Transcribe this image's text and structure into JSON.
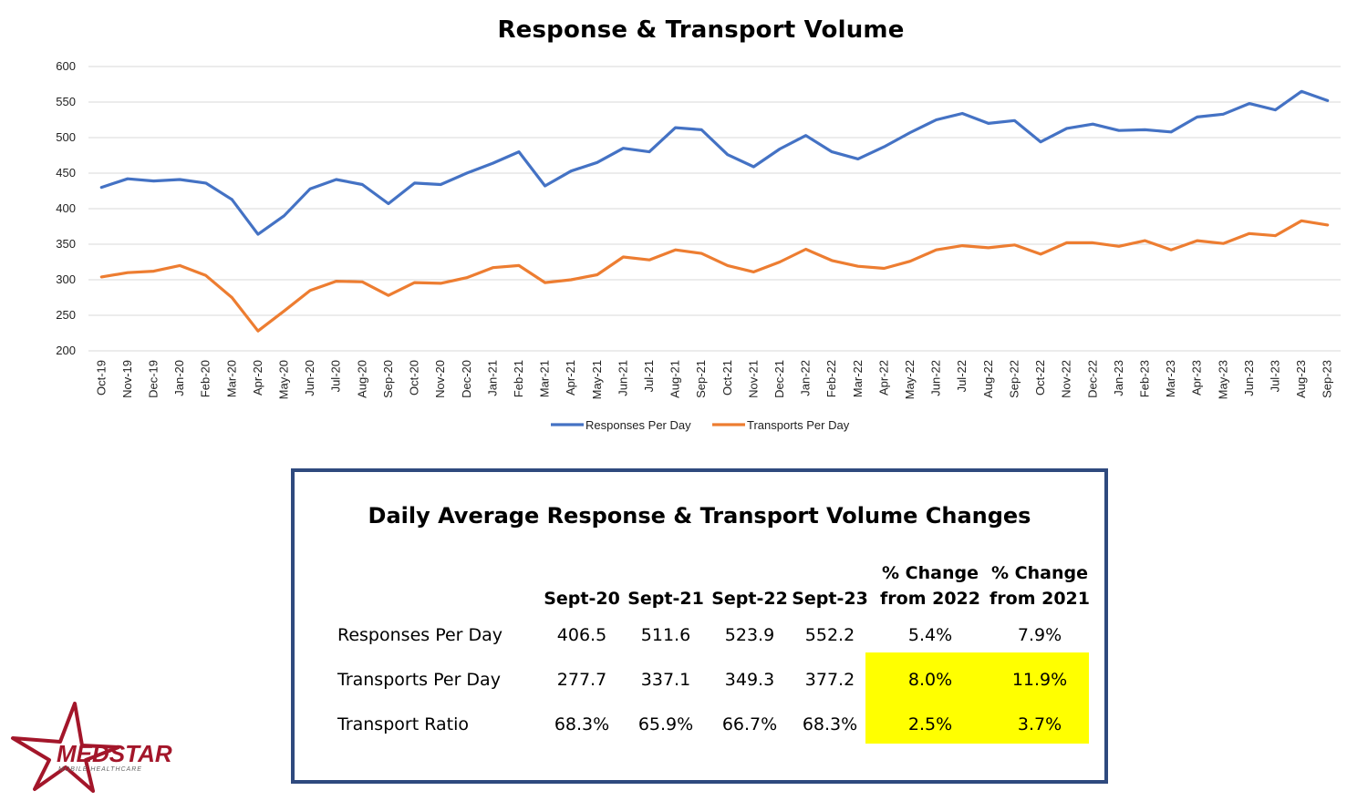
{
  "chart_data": {
    "type": "line",
    "title": "Response & Transport Volume",
    "ylim": [
      200,
      600
    ],
    "yticks": [
      200,
      250,
      300,
      350,
      400,
      450,
      500,
      550,
      600
    ],
    "grid": true,
    "legend_position": "bottom",
    "categories": [
      "Oct-19",
      "Nov-19",
      "Dec-19",
      "Jan-20",
      "Feb-20",
      "Mar-20",
      "Apr-20",
      "May-20",
      "Jun-20",
      "Jul-20",
      "Aug-20",
      "Sep-20",
      "Oct-20",
      "Nov-20",
      "Dec-20",
      "Jan-21",
      "Feb-21",
      "Mar-21",
      "Apr-21",
      "May-21",
      "Jun-21",
      "Jul-21",
      "Aug-21",
      "Sep-21",
      "Oct-21",
      "Nov-21",
      "Dec-21",
      "Jan-22",
      "Feb-22",
      "Mar-22",
      "Apr-22",
      "May-22",
      "Jun-22",
      "Jul-22",
      "Aug-22",
      "Sep-22",
      "Oct-22",
      "Nov-22",
      "Dec-22",
      "Jan-23",
      "Feb-23",
      "Mar-23",
      "Apr-23",
      "May-23",
      "Jun-23",
      "Jul-23",
      "Aug-23",
      "Sep-23"
    ],
    "series": [
      {
        "name": "Responses Per Day",
        "color": "#4472c4",
        "values": [
          430,
          442,
          439,
          441,
          436,
          413,
          364,
          390,
          428,
          441,
          434,
          407,
          436,
          434,
          450,
          464,
          480,
          432,
          453,
          465,
          485,
          480,
          514,
          511,
          476,
          459,
          484,
          503,
          480,
          470,
          487,
          507,
          525,
          534,
          520,
          524,
          494,
          513,
          519,
          510,
          511,
          508,
          529,
          533,
          548,
          539,
          565,
          552
        ]
      },
      {
        "name": "Transports Per Day",
        "color": "#ed7d31",
        "values": [
          304,
          310,
          312,
          320,
          306,
          275,
          228,
          256,
          285,
          298,
          297,
          278,
          296,
          295,
          303,
          317,
          320,
          296,
          300,
          307,
          332,
          328,
          342,
          337,
          320,
          311,
          325,
          343,
          327,
          319,
          316,
          326,
          342,
          348,
          345,
          349,
          336,
          352,
          352,
          347,
          355,
          342,
          355,
          351,
          365,
          362,
          383,
          377
        ]
      }
    ]
  },
  "table": {
    "title": "Daily Average Response & Transport Volume Changes",
    "headers": [
      "Sept-20",
      "Sept-21",
      "Sept-22",
      "Sept-23"
    ],
    "change_headers": [
      {
        "line1": "% Change",
        "line2": "from 2022"
      },
      {
        "line1": "% Change",
        "line2": "from 2021"
      }
    ],
    "rows": [
      {
        "label": "Responses Per Day",
        "values": [
          "406.5",
          "511.6",
          "523.9",
          "552.2",
          "5.4%",
          "7.9%"
        ]
      },
      {
        "label": "Transports Per Day",
        "values": [
          "277.7",
          "337.1",
          "349.3",
          "377.2",
          "8.0%",
          "11.9%"
        ]
      },
      {
        "label": "Transport Ratio",
        "values": [
          "68.3%",
          "65.9%",
          "66.7%",
          "68.3%",
          "2.5%",
          "3.7%"
        ]
      }
    ],
    "highlight_color": "#ffff00",
    "border_color": "#2f4a7e"
  },
  "logo": {
    "brand_text": "MEDSTAR",
    "tagline": "MOBILE HEALTHCARE",
    "color": "#a3162a"
  }
}
